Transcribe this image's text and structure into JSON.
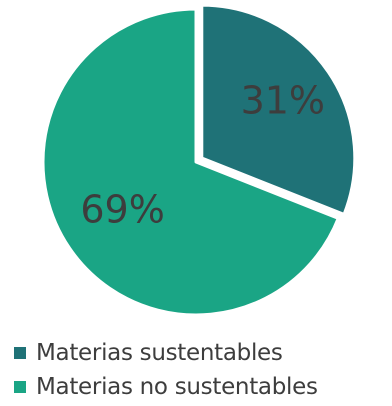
{
  "chart_data": {
    "type": "pie",
    "title": "",
    "categories": [
      "Materias sustentables",
      "Materias no sustentables"
    ],
    "values": [
      31,
      69
    ],
    "labels": [
      "31%",
      "69%"
    ],
    "colors": [
      "#1f7277",
      "#1aa585"
    ],
    "legend_position": "bottom-left"
  }
}
